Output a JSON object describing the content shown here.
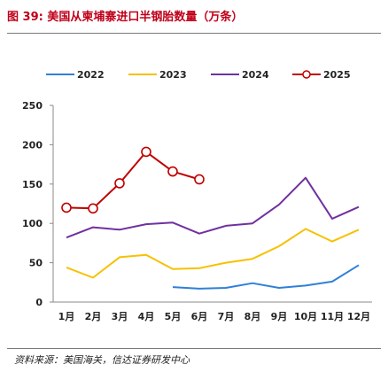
{
  "figure": {
    "title": "图 39:  美国从柬埔寨进口半钢胎数量（万条）",
    "source": "资料来源：美国海关，信达证券研发中心"
  },
  "chart_data": {
    "type": "line",
    "categories": [
      "1月",
      "2月",
      "3月",
      "4月",
      "5月",
      "6月",
      "7月",
      "8月",
      "9月",
      "10月",
      "11月",
      "12月"
    ],
    "series": [
      {
        "name": "2022",
        "color": "#2f80d8",
        "marker": "none",
        "values": [
          null,
          null,
          null,
          null,
          19,
          17,
          18,
          24,
          18,
          21,
          26,
          47
        ]
      },
      {
        "name": "2023",
        "color": "#f6c100",
        "marker": "none",
        "values": [
          44,
          31,
          57,
          60,
          42,
          43,
          50,
          55,
          71,
          93,
          77,
          92
        ]
      },
      {
        "name": "2024",
        "color": "#7030a0",
        "marker": "none",
        "values": [
          82,
          95,
          92,
          99,
          101,
          87,
          97,
          100,
          124,
          158,
          106,
          121
        ]
      },
      {
        "name": "2025",
        "color": "#c00000",
        "marker": "circle",
        "values": [
          120,
          119,
          151,
          191,
          166,
          156,
          null,
          null,
          null,
          null,
          null,
          null
        ]
      }
    ],
    "yticks": [
      0,
      50,
      100,
      150,
      200,
      250
    ],
    "ylim": [
      0,
      250
    ],
    "legend": "top",
    "grid": false
  }
}
